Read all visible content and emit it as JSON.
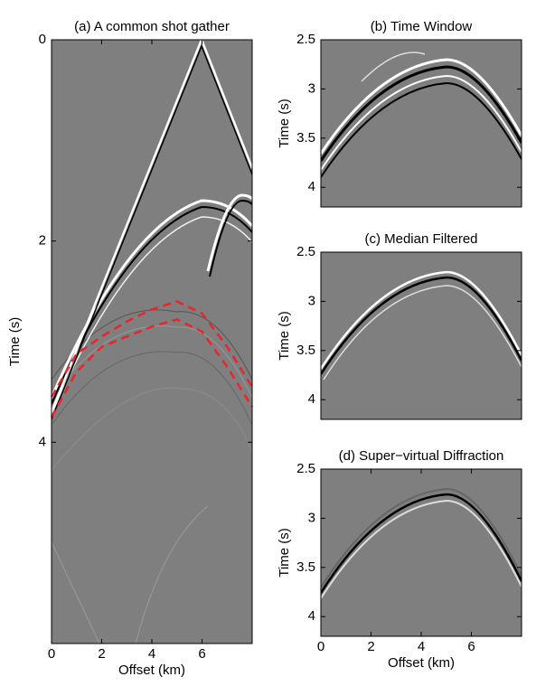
{
  "chart_data": [
    {
      "type": "image",
      "title": "(a) A common shot gather",
      "xlabel": "Offset (km)",
      "ylabel": "Time (s)",
      "xlim": [
        0,
        8
      ],
      "ylim": [
        0,
        6
      ],
      "xticks": [
        0,
        2,
        4,
        6
      ],
      "yticks": [
        0,
        2,
        4
      ],
      "y_inverted": true,
      "series": [
        {
          "color": "#e8262b",
          "x": [
            0,
            1,
            2,
            3,
            4,
            5,
            6,
            7,
            8
          ],
          "values": [
            3.55,
            3.12,
            2.95,
            2.8,
            2.68,
            2.6,
            2.72,
            3.05,
            3.45
          ]
        },
        {
          "color": "#e8262b",
          "x": [
            0,
            1,
            2,
            3,
            4,
            5,
            6,
            7,
            8
          ],
          "values": [
            3.75,
            3.3,
            3.05,
            2.95,
            2.85,
            2.78,
            2.9,
            3.25,
            3.65
          ]
        }
      ]
    },
    {
      "type": "image",
      "title": "(b) Time Window",
      "ylabel": "Time (s)",
      "xlim": [
        0,
        8
      ],
      "ylim": [
        2.5,
        4.2
      ],
      "yticks": [
        2.5,
        3,
        3.5,
        4
      ],
      "y_inverted": true
    },
    {
      "type": "image",
      "title": "(c) Median Filtered",
      "ylabel": "Time (s)",
      "xlim": [
        0,
        8
      ],
      "ylim": [
        2.5,
        4.2
      ],
      "yticks": [
        2.5,
        3,
        3.5,
        4
      ],
      "y_inverted": true
    },
    {
      "type": "image",
      "title": "(d) Super−virtual Diffraction",
      "xlabel": "Offset (km)",
      "ylabel": "Time (s)",
      "xlim": [
        0,
        8
      ],
      "ylim": [
        2.5,
        4.2
      ],
      "xticks": [
        0,
        2,
        4,
        6
      ],
      "yticks": [
        2.5,
        3,
        3.5,
        4
      ],
      "y_inverted": true
    }
  ]
}
